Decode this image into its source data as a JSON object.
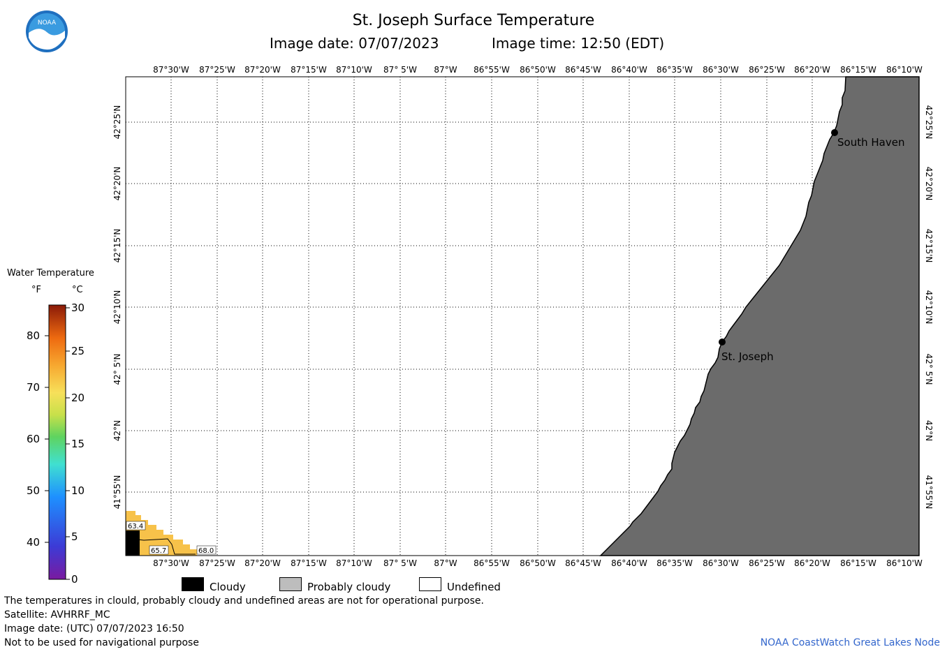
{
  "header": {
    "title": "St. Joseph Surface Temperature",
    "image_date": "Image date: 07/07/2023",
    "image_time": "Image time: 12:50 (EDT)"
  },
  "logo": {
    "text": "NOAA",
    "icon": "noaa-logo-icon"
  },
  "map": {
    "lon_labels": [
      "87°30'W",
      "87°25'W",
      "87°20'W",
      "87°15'W",
      "87°10'W",
      "87° 5'W",
      "87°W",
      "86°55'W",
      "86°50'W",
      "86°45'W",
      "86°40'W",
      "86°35'W",
      "86°30'W",
      "86°25'W",
      "86°20'W",
      "86°15'W",
      "86°10'W"
    ],
    "lat_labels": [
      "42°25'N",
      "42°20'N",
      "42°15'N",
      "42°10'N",
      "42° 5'N",
      "42°N",
      "41°55'N"
    ],
    "cities": [
      {
        "name": "South Haven"
      },
      {
        "name": "St. Joseph"
      }
    ],
    "sst_labels": [
      "63.4",
      "65.7",
      "68.0"
    ],
    "colors": {
      "land": "#6b6b6b",
      "warm_sst": "#f7c24a",
      "cloud": "#000000"
    }
  },
  "legend": {
    "title": "Water Temperature",
    "unit_f": "°F",
    "unit_c": "°C",
    "ticks_f": [
      "80",
      "70",
      "60",
      "50",
      "40"
    ],
    "ticks_c": [
      "30",
      "25",
      "20",
      "15",
      "10",
      "5",
      "0"
    ]
  },
  "cloud_legend": {
    "cloudy": "Cloudy",
    "probably_cloudy": "Probably cloudy",
    "undefined": "Undefined"
  },
  "footer": {
    "note": "The temperatures in clould, probably cloudy and undefined areas are not for operational purpose.",
    "satellite": "Satellite: AVHRRF_MC",
    "utc_date": "Image date: (UTC) 07/07/2023  16:50",
    "disclaimer": "Not to be used for navigational purpose",
    "credit": "NOAA CoastWatch Great Lakes Node"
  }
}
